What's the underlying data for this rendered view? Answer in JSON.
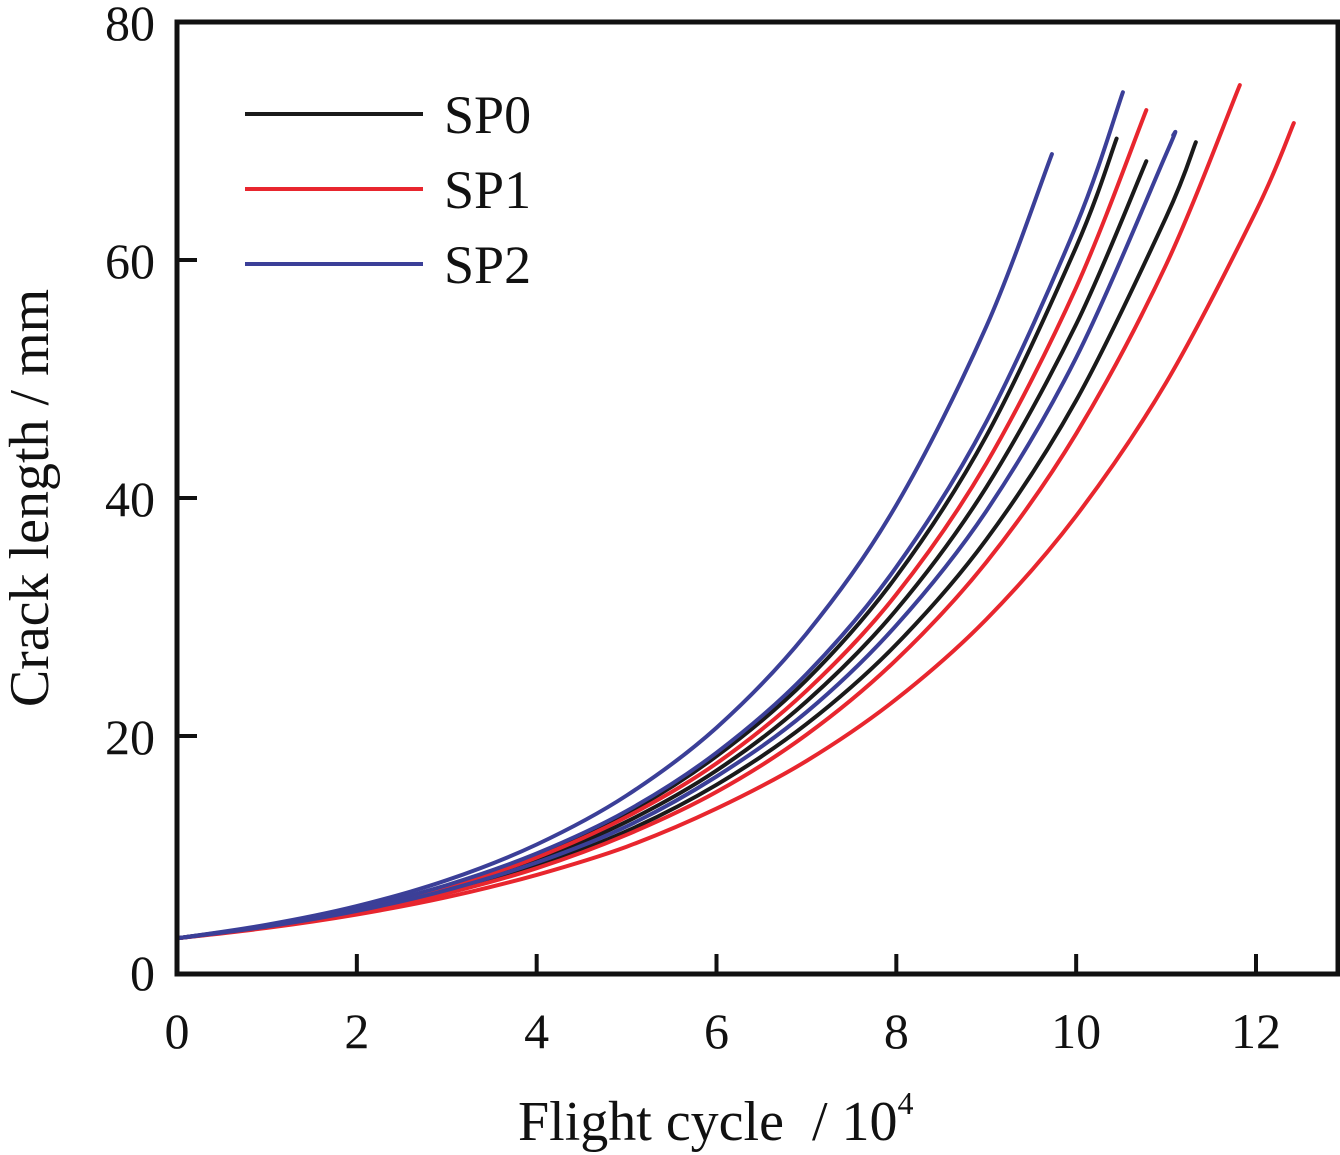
{
  "chart_data": {
    "type": "line",
    "title": "",
    "xlabel": "Flight cycle  / 10",
    "xlabel_superscript": "4",
    "ylabel": "Crack length / mm",
    "xlim": [
      0,
      13
    ],
    "ylim": [
      0,
      80
    ],
    "xticks": [
      0,
      2,
      4,
      6,
      8,
      10,
      12
    ],
    "yticks": [
      0,
      20,
      40,
      60,
      80
    ],
    "xtick_labels": [
      "0",
      "2",
      "4",
      "6",
      "8",
      "10",
      "12"
    ],
    "ytick_labels": [
      "0",
      "20",
      "40",
      "60",
      "80"
    ],
    "grid": false,
    "legend_position": "top-left",
    "legend": [
      {
        "name": "SP0",
        "color": "#1a1a1a"
      },
      {
        "name": "SP1",
        "color": "#e8262e"
      },
      {
        "name": "SP2",
        "color": "#3b3f98"
      }
    ],
    "series": [
      {
        "name": "SP0",
        "color": "#1a1a1a",
        "x": [
          0,
          1,
          2,
          3,
          4,
          5,
          6,
          7,
          8,
          9,
          10,
          10.45
        ],
        "y": [
          3.0,
          4.06,
          5.48,
          7.41,
          10.0,
          13.5,
          18.3,
          24.7,
          33.4,
          45.2,
          61.1,
          70.2
        ]
      },
      {
        "name": "SP0",
        "color": "#1a1a1a",
        "x": [
          0,
          1,
          2,
          3,
          4,
          5,
          6,
          7,
          8,
          9,
          10,
          10.78
        ],
        "y": [
          3.0,
          4.01,
          5.36,
          7.16,
          9.57,
          12.8,
          17.1,
          22.9,
          30.6,
          40.9,
          54.6,
          68.3
        ]
      },
      {
        "name": "SP0",
        "color": "#1a1a1a",
        "x": [
          0,
          1,
          2,
          3,
          4,
          5,
          6,
          7,
          8,
          9,
          10,
          11,
          11.33
        ],
        "y": [
          3.0,
          3.96,
          5.22,
          6.9,
          9.1,
          12.0,
          15.9,
          21.0,
          27.7,
          36.5,
          48.2,
          63.6,
          69.9
        ]
      },
      {
        "name": "SP1",
        "color": "#e8262e",
        "x": [
          0,
          1,
          2,
          3,
          4,
          5,
          6,
          7,
          8,
          9,
          10,
          10.78
        ],
        "y": [
          3.0,
          4.03,
          5.42,
          7.28,
          9.79,
          13.2,
          17.7,
          23.8,
          31.9,
          42.9,
          57.7,
          72.6
        ]
      },
      {
        "name": "SP1",
        "color": "#e8262e",
        "x": [
          0,
          1,
          2,
          3,
          4,
          5,
          6,
          7,
          8,
          9,
          10,
          11,
          11.82
        ],
        "y": [
          3.0,
          3.94,
          5.16,
          6.78,
          8.89,
          11.7,
          15.3,
          20.1,
          26.4,
          34.6,
          45.4,
          59.6,
          74.7
        ]
      },
      {
        "name": "SP1",
        "color": "#e8262e",
        "x": [
          0,
          1,
          2,
          3,
          4,
          5,
          6,
          7,
          8,
          9,
          10,
          11,
          12,
          12.42
        ],
        "y": [
          3.0,
          3.87,
          5.0,
          6.45,
          8.33,
          10.7,
          13.9,
          17.9,
          23.1,
          29.8,
          38.5,
          49.7,
          64.1,
          71.5
        ]
      },
      {
        "name": "SP2",
        "color": "#3b3f98",
        "x": [
          0,
          1,
          2,
          3,
          4,
          5,
          6,
          7,
          8,
          9,
          9.73
        ],
        "y": [
          3.0,
          4.14,
          5.71,
          7.88,
          10.88,
          15.0,
          20.7,
          28.6,
          39.4,
          54.4,
          68.9
        ]
      },
      {
        "name": "SP2",
        "color": "#3b3f98",
        "x": [
          0,
          1,
          2,
          3,
          4,
          5,
          6,
          7,
          8,
          9,
          10,
          10.52
        ],
        "y": [
          3.0,
          4.07,
          5.51,
          7.47,
          10.13,
          13.7,
          18.6,
          25.2,
          34.2,
          46.4,
          62.9,
          74.1
        ]
      },
      {
        "name": "SP2",
        "color": "#3b3f98",
        "x": [
          0,
          1,
          2,
          3,
          4,
          5,
          6,
          7,
          8,
          9,
          10,
          11,
          11.08
        ],
        "y": [
          3.0,
          3.99,
          5.3,
          7.05,
          9.37,
          12.4,
          16.6,
          22.0,
          29.3,
          38.9,
          51.8,
          68.9,
          70.5
        ]
      }
    ]
  }
}
